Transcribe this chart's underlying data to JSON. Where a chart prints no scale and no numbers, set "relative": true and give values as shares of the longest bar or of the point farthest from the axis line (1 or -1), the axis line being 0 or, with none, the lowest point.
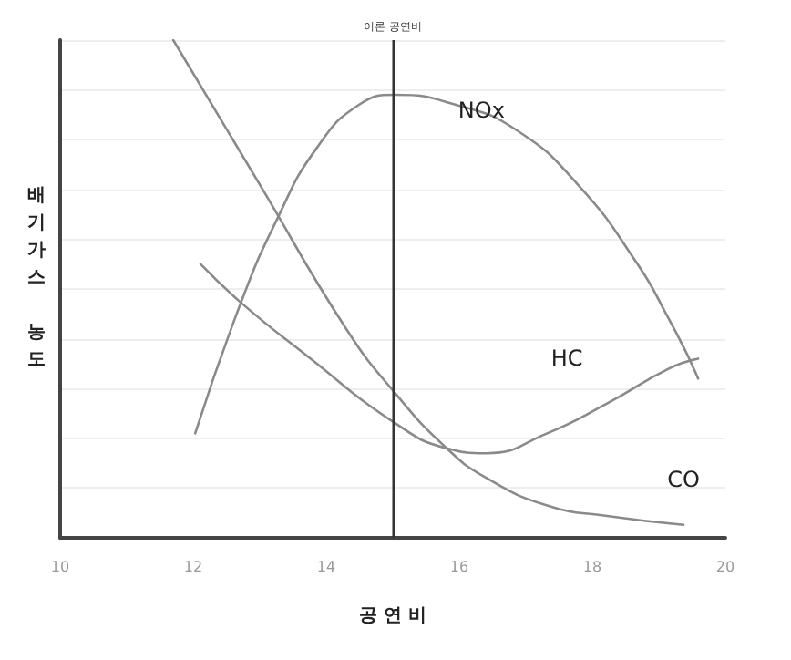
{
  "chart_data": {
    "type": "line",
    "relative": true,
    "xlabel": "공 연 비",
    "ylabel": "배기가스 농도",
    "xlim": [
      10,
      20
    ],
    "xticks": [
      10,
      12,
      14,
      16,
      18,
      20
    ],
    "grid": "y",
    "legend": false,
    "marker": "none",
    "line_style": "solid",
    "ref_lines": [
      {
        "axis": "x",
        "value": 15,
        "label": "이론 공연비",
        "color": "#333333"
      }
    ],
    "series": [
      {
        "name": "NOx",
        "color": "#8a8a8a",
        "x": [
          12.03,
          12.71,
          13.26,
          13.84,
          14.49,
          15.04,
          15.95,
          16.85,
          17.78,
          18.68,
          19.15,
          19.42,
          19.59
        ],
        "values": [
          0.21,
          0.47,
          0.64,
          0.78,
          0.87,
          0.89,
          0.87,
          0.82,
          0.71,
          0.55,
          0.44,
          0.37,
          0.32
        ]
      },
      {
        "name": "HC",
        "color": "#8a8a8a",
        "x": [
          12.11,
          12.74,
          13.67,
          15.04,
          15.81,
          16.41,
          17.32,
          18.22,
          19.15,
          19.59
        ],
        "values": [
          0.55,
          0.47,
          0.37,
          0.23,
          0.18,
          0.17,
          0.21,
          0.27,
          0.34,
          0.36
        ]
      },
      {
        "name": "CO",
        "color": "#8a8a8a",
        "x": [
          11.7,
          13,
          14.3,
          15.04,
          15.81,
          16.41,
          17.32,
          18.22,
          19.37
        ],
        "values": [
          1.0,
          0.71,
          0.42,
          0.29,
          0.18,
          0.12,
          0.065,
          0.044,
          0.026
        ]
      }
    ]
  }
}
